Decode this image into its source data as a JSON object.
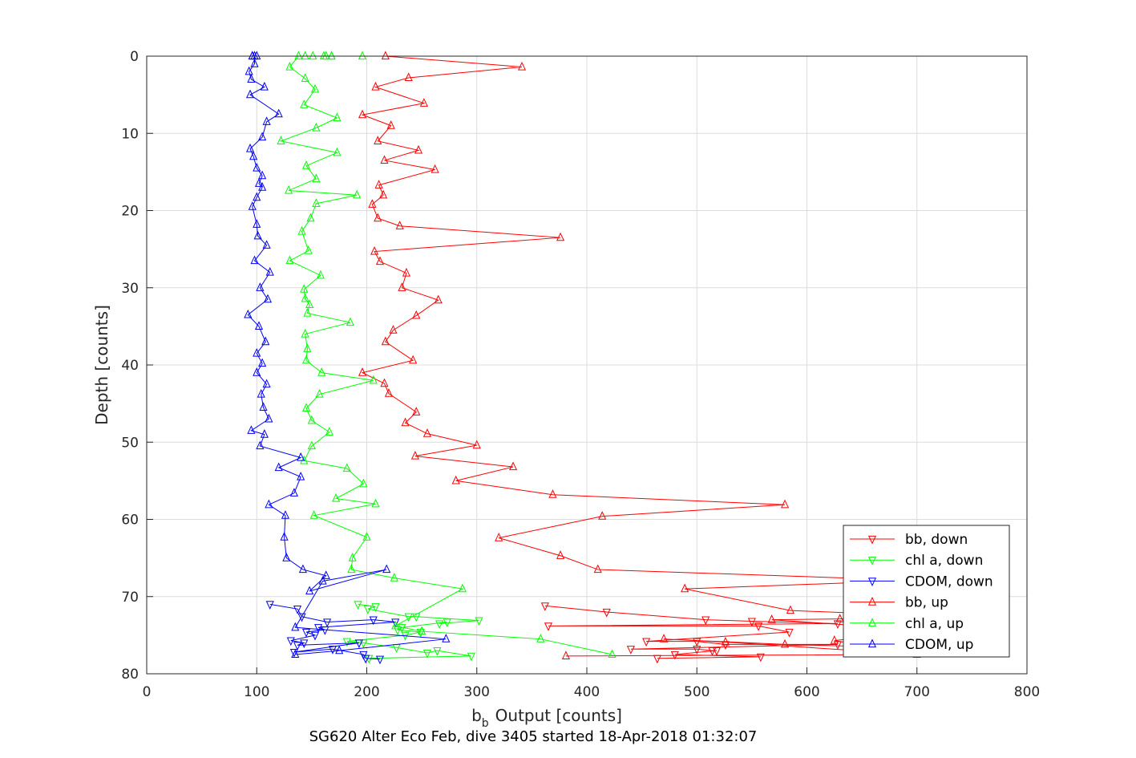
{
  "chart_data": {
    "type": "line",
    "title": "SG620 Alter Eco Feb, dive 3405 started 18-Apr-2018 01:32:07",
    "xlabel_main": "b",
    "xlabel_sub": "b",
    "xlabel_rest": "Output [counts]",
    "ylabel": "Depth [counts]",
    "xlim": [
      0,
      800
    ],
    "ylim": [
      0,
      80
    ],
    "y_reversed": true,
    "grid": true,
    "legend_position": "bottom-right",
    "xticks": [
      "0",
      "100",
      "200",
      "300",
      "400",
      "500",
      "600",
      "700",
      "800"
    ],
    "yticks": [
      "0",
      "10",
      "20",
      "30",
      "40",
      "50",
      "60",
      "70",
      "80"
    ],
    "series": [
      {
        "name": "bb, down",
        "color": "#ff0000",
        "marker": "triangle-down",
        "x": [
          362,
          418,
          508,
          550,
          628,
          365,
          556,
          584,
          454,
          500,
          526,
          628,
          440,
          500,
          514,
          518,
          480,
          558,
          464
        ],
        "y": [
          71.2,
          72.0,
          73.0,
          73.2,
          73.5,
          73.8,
          73.8,
          74.6,
          75.8,
          75.8,
          76.2,
          76.2,
          76.8,
          76.8,
          77.0,
          77.0,
          77.5,
          77.8,
          78.0
        ]
      },
      {
        "name": "chl a, down",
        "color": "#00ff00",
        "marker": "triangle-down",
        "x": [
          192,
          208,
          201,
          238,
          245,
          302,
          266,
          273,
          232,
          228,
          249,
          235,
          182,
          197,
          227,
          255,
          264,
          295,
          202
        ],
        "y": [
          71.0,
          71.3,
          71.6,
          72.6,
          72.6,
          73.1,
          73.5,
          73.3,
          74.0,
          74.3,
          74.6,
          75.0,
          75.8,
          76.0,
          76.6,
          77.3,
          77.0,
          77.7,
          78.0
        ]
      },
      {
        "name": "CDOM, down",
        "color": "#0000ff",
        "marker": "triangle-down",
        "x": [
          112,
          137,
          141,
          164,
          206,
          226,
          156,
          162,
          145,
          153,
          131,
          143,
          137,
          193,
          134,
          169,
          197,
          199,
          212
        ],
        "y": [
          71.0,
          71.6,
          72.6,
          73.3,
          73.0,
          73.3,
          74.0,
          74.3,
          74.6,
          75.0,
          75.7,
          76.0,
          76.3,
          76.0,
          77.2,
          76.8,
          77.5,
          78.0,
          78.1
        ]
      },
      {
        "name": "bb, up",
        "color": "#ff0000",
        "marker": "triangle-up",
        "x": [
          381,
          700,
          526,
          470,
          580,
          660,
          625,
          700,
          685,
          640,
          568,
          630,
          690,
          585,
          489,
          700,
          410,
          376,
          320,
          414,
          580,
          369,
          281,
          333,
          244,
          300,
          255,
          235,
          245,
          220,
          216,
          196,
          242,
          217,
          224,
          245,
          265,
          232,
          236,
          212,
          207,
          376,
          230,
          210,
          205,
          215,
          211,
          262,
          216,
          247,
          210,
          222,
          196,
          252,
          208,
          238,
          341,
          217
        ],
        "y": [
          77.7,
          77.5,
          75.9,
          75.5,
          76.2,
          76.5,
          75.7,
          74.5,
          74.2,
          73.7,
          73.0,
          72.9,
          72.4,
          71.8,
          69.0,
          67.9,
          66.5,
          64.7,
          62.4,
          59.6,
          58.1,
          56.8,
          55.0,
          53.2,
          51.8,
          50.4,
          48.9,
          47.5,
          46.1,
          43.7,
          42.4,
          41.0,
          39.4,
          37.0,
          35.5,
          33.6,
          31.6,
          30.0,
          28.1,
          26.6,
          25.3,
          23.5,
          22.0,
          21.0,
          19.2,
          18.0,
          16.7,
          14.7,
          13.5,
          12.2,
          11.0,
          9.0,
          7.6,
          6.1,
          4.0,
          2.8,
          1.4,
          0.0
        ]
      },
      {
        "name": "chl a, up",
        "color": "#00ff00",
        "marker": "triangle-up",
        "x": [
          423,
          358,
          250,
          226,
          287,
          225,
          186,
          187,
          200,
          152,
          208,
          172,
          197,
          182,
          143,
          150,
          166,
          150,
          145,
          157,
          206,
          159,
          145,
          146,
          144,
          185,
          146,
          148,
          144,
          143,
          158,
          130,
          147,
          141,
          149,
          154,
          191,
          129,
          154,
          145,
          173,
          122,
          154,
          173,
          143,
          153,
          144,
          130,
          138,
          161,
          196,
          168,
          168,
          151,
          163,
          144
        ],
        "y": [
          77.5,
          75.5,
          74.5,
          73.8,
          69.0,
          67.6,
          66.5,
          65.0,
          62.3,
          59.5,
          58.0,
          57.3,
          55.4,
          53.4,
          52.4,
          50.5,
          48.7,
          47.2,
          45.6,
          43.8,
          42.0,
          41.0,
          39.4,
          37.9,
          36.0,
          34.5,
          33.3,
          32.2,
          31.4,
          30.2,
          28.4,
          26.5,
          25.2,
          22.7,
          21.0,
          19.1,
          18.0,
          17.4,
          15.9,
          14.2,
          12.5,
          11.0,
          9.3,
          8.0,
          6.3,
          4.3,
          2.9,
          1.4,
          0.0,
          0.0,
          0.0,
          0.0,
          0.0,
          0.0,
          0.0,
          0.0
        ]
      },
      {
        "name": "CDOM, up",
        "color": "#0000ff",
        "marker": "triangle-up",
        "x": [
          135,
          175,
          272,
          135,
          160,
          218,
          148,
          163,
          142,
          127,
          125,
          126,
          111,
          134,
          140,
          120,
          140,
          103,
          107,
          95,
          111,
          106,
          104,
          109,
          100,
          105,
          100,
          108,
          102,
          92,
          110,
          103,
          112,
          98,
          109,
          101,
          100,
          96,
          100,
          105,
          102,
          105,
          100,
          97,
          94,
          105,
          109,
          120,
          94,
          107,
          95,
          93,
          98,
          98,
          96,
          96,
          100
        ],
        "y": [
          77.5,
          77.0,
          75.5,
          74.0,
          68.0,
          66.5,
          69.3,
          67.3,
          66.5,
          65.0,
          62.3,
          59.5,
          58.1,
          56.6,
          54.5,
          53.3,
          52.0,
          50.5,
          49.0,
          48.5,
          47.0,
          45.5,
          43.8,
          42.5,
          41.0,
          39.8,
          38.5,
          37.0,
          35.0,
          33.5,
          31.5,
          30.0,
          28.0,
          26.5,
          24.5,
          23.3,
          21.8,
          19.5,
          18.3,
          17.0,
          16.5,
          15.5,
          14.5,
          13.0,
          12.0,
          10.5,
          8.5,
          7.5,
          5.0,
          4.0,
          3.0,
          2.0,
          1.0,
          0.0,
          0.0,
          0.0,
          0.0
        ]
      }
    ]
  }
}
